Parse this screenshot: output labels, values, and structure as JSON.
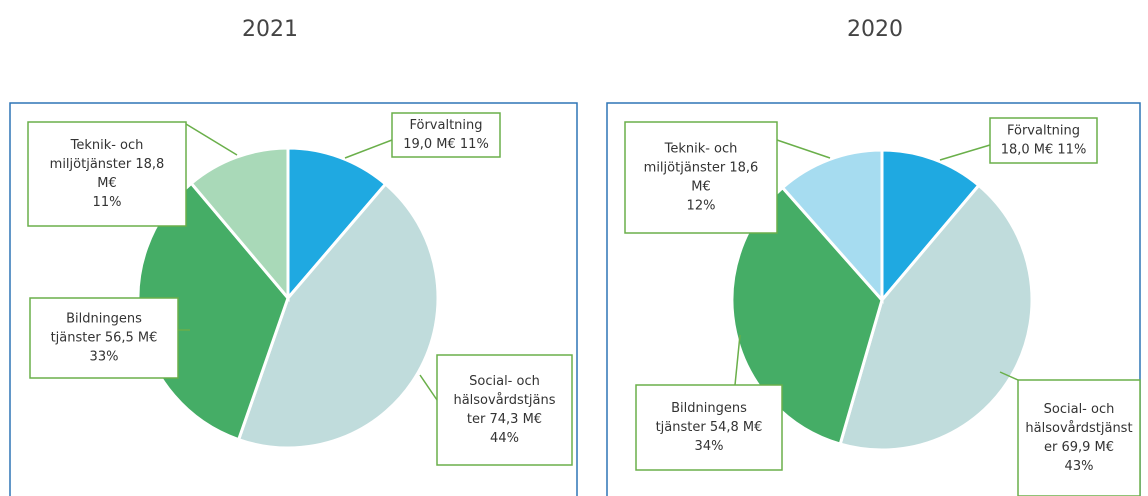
{
  "chart_data": [
    {
      "type": "pie",
      "title": "2021",
      "values": [
        19.0,
        74.3,
        56.5,
        18.8
      ],
      "colors": [
        "#1fa9e1",
        "#c0dcdc",
        "#45ad66",
        "#a9d9b8"
      ],
      "value_labels": [
        [
          "Förvaltning",
          "19,0 M€ 11%"
        ],
        [
          "Social- och",
          "hälsovårdstjäns",
          "ter 74,3 M€",
          "44%"
        ],
        [
          "Bildningens",
          "tjänster 56,5 M€",
          "33%"
        ],
        [
          "Teknik- och",
          "miljötjänster 18,8",
          "M€",
          "11%"
        ]
      ]
    },
    {
      "type": "pie",
      "title": "2020",
      "values": [
        18.0,
        69.9,
        54.8,
        18.6
      ],
      "colors": [
        "#1fa9e1",
        "#c0dcdc",
        "#45ad66",
        "#a6dcf0"
      ],
      "value_labels": [
        [
          "Förvaltning",
          "18,0 M€ 11%"
        ],
        [
          "Social- och",
          "hälsovårdstjänst",
          "er 69,9 M€",
          "43%"
        ],
        [
          "Bildningens",
          "tjänster 54,8 M€",
          "34%"
        ],
        [
          "Teknik- och",
          "miljötjänster 18,6",
          "M€",
          "12%"
        ]
      ]
    }
  ]
}
